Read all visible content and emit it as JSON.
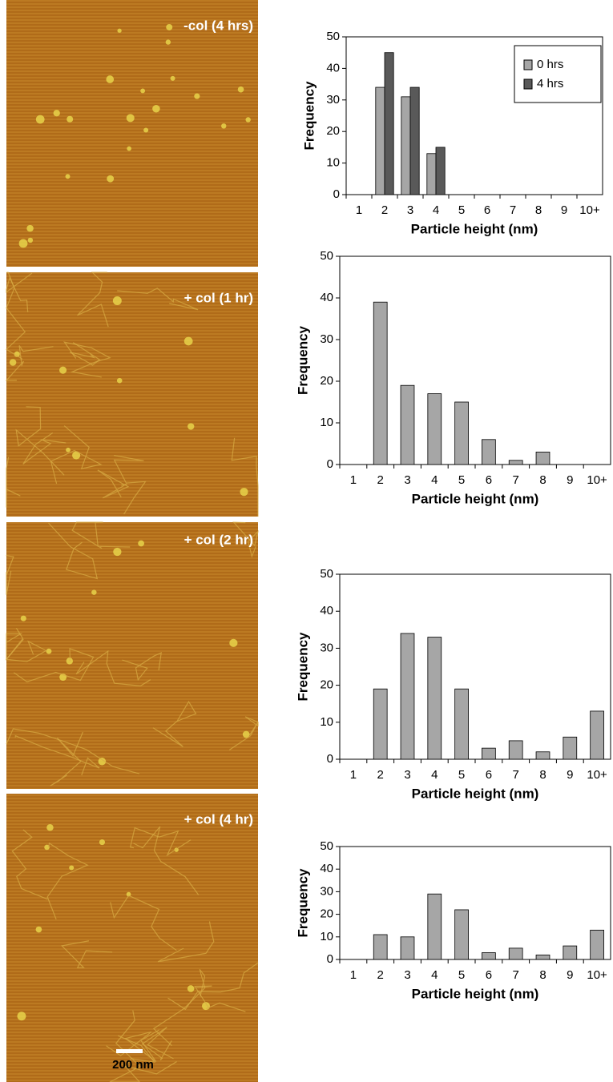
{
  "images": [
    {
      "label": "-col (4 hrs)"
    },
    {
      "label": "+ col (1 hr)"
    },
    {
      "label": "+ col (2 hr)"
    },
    {
      "label": "+ col (4 hr)"
    }
  ],
  "scale_bar": "200 nm",
  "chart_data": [
    {
      "type": "bar",
      "x_label": "Particle height (nm)",
      "y_label": "Frequency",
      "categories": [
        "1",
        "2",
        "3",
        "4",
        "5",
        "6",
        "7",
        "8",
        "9",
        "10+"
      ],
      "series": [
        {
          "name": "0 hrs",
          "color": "#a6a6a6",
          "values": [
            0,
            34,
            31,
            13,
            0,
            0,
            0,
            0,
            0,
            0
          ]
        },
        {
          "name": "4 hrs",
          "color": "#595959",
          "values": [
            0,
            45,
            34,
            15,
            0,
            0,
            0,
            0,
            0,
            0
          ]
        }
      ],
      "ylim": [
        0,
        50
      ],
      "yticks": [
        0,
        10,
        20,
        30,
        40,
        50
      ],
      "legend": "top-right"
    },
    {
      "type": "bar",
      "x_label": "Particle height (nm)",
      "y_label": "Frequency",
      "categories": [
        "1",
        "2",
        "3",
        "4",
        "5",
        "6",
        "7",
        "8",
        "9",
        "10+"
      ],
      "series": [
        {
          "name": null,
          "color": "#a6a6a6",
          "values": [
            0,
            39,
            19,
            17,
            15,
            6,
            1,
            3,
            0,
            0
          ]
        }
      ],
      "ylim": [
        0,
        50
      ],
      "yticks": [
        0,
        10,
        20,
        30,
        40,
        50
      ]
    },
    {
      "type": "bar",
      "x_label": "Particle height (nm)",
      "y_label": "Frequency",
      "categories": [
        "1",
        "2",
        "3",
        "4",
        "5",
        "6",
        "7",
        "8",
        "9",
        "10+"
      ],
      "series": [
        {
          "name": null,
          "color": "#a6a6a6",
          "values": [
            0,
            19,
            34,
            33,
            19,
            3,
            5,
            2,
            6,
            13
          ]
        }
      ],
      "ylim": [
        0,
        50
      ],
      "yticks": [
        0,
        10,
        20,
        30,
        40,
        50
      ]
    },
    {
      "type": "bar",
      "x_label": "Particle height (nm)",
      "y_label": "Frequency",
      "categories": [
        "1",
        "2",
        "3",
        "4",
        "5",
        "6",
        "7",
        "8",
        "9",
        "10+"
      ],
      "series": [
        {
          "name": null,
          "color": "#a6a6a6",
          "values": [
            0,
            11,
            10,
            29,
            22,
            3,
            5,
            2,
            6,
            13
          ]
        }
      ],
      "ylim": [
        0,
        50
      ],
      "yticks": [
        0,
        10,
        20,
        30,
        40,
        50
      ]
    }
  ]
}
